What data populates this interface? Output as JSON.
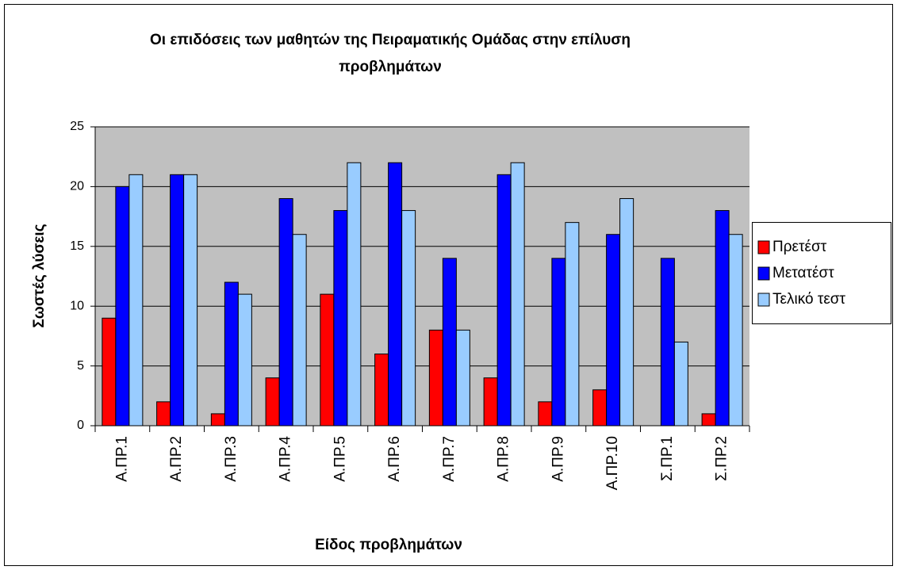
{
  "chart_data": {
    "type": "bar",
    "title": "Οι επιδόσεις των μαθητών της Πειραματικής Ομάδας στην επίλυση προβλημάτων",
    "xlabel": "Είδος προβλημάτων",
    "ylabel": "Σωστές λύσεις",
    "categories": [
      "Α.ΠΡ.1",
      "Α.ΠΡ.2",
      "Α.ΠΡ.3",
      "Α.ΠΡ.4",
      "Α.ΠΡ.5",
      "Α.ΠΡ.6",
      "Α.ΠΡ.7",
      "Α.ΠΡ.8",
      "Α.ΠΡ.9",
      "Α.ΠΡ.10",
      "Σ.ΠΡ.1",
      "Σ.ΠΡ.2"
    ],
    "series": [
      {
        "name": "Πρετέστ",
        "color": "#ff0000",
        "values": [
          9,
          2,
          1,
          4,
          11,
          6,
          8,
          4,
          2,
          3,
          0,
          1
        ]
      },
      {
        "name": "Μετατέστ",
        "color": "#0000ff",
        "values": [
          20,
          21,
          12,
          19,
          18,
          22,
          14,
          21,
          14,
          16,
          14,
          18
        ]
      },
      {
        "name": "Τελικό τεστ",
        "color": "#99ccff",
        "values": [
          21,
          21,
          11,
          16,
          22,
          18,
          8,
          22,
          17,
          19,
          7,
          16
        ]
      }
    ],
    "ylim": [
      0,
      25
    ],
    "yticks": [
      0,
      5,
      10,
      15,
      20,
      25
    ],
    "grid": true,
    "legend": "right"
  }
}
